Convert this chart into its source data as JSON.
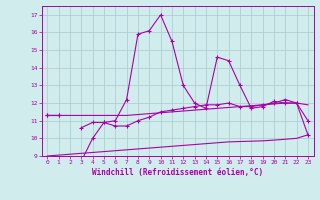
{
  "x": [
    0,
    1,
    2,
    3,
    4,
    5,
    6,
    7,
    8,
    9,
    10,
    11,
    12,
    13,
    14,
    15,
    16,
    17,
    18,
    19,
    20,
    21,
    22,
    23
  ],
  "series1": [
    11.3,
    11.3,
    null,
    8.7,
    10.0,
    10.9,
    11.0,
    12.2,
    15.9,
    16.1,
    17.0,
    15.5,
    13.0,
    12.0,
    11.7,
    14.6,
    14.4,
    13.0,
    11.7,
    11.8,
    12.1,
    12.0,
    12.0,
    11.0
  ],
  "series2": [
    11.3,
    11.3,
    null,
    10.6,
    10.9,
    10.9,
    10.7,
    10.7,
    11.0,
    11.2,
    11.5,
    11.6,
    11.7,
    11.8,
    11.9,
    11.9,
    12.0,
    11.8,
    11.8,
    11.9,
    12.0,
    12.2,
    12.0,
    10.2
  ],
  "series3_low": [
    9.0,
    9.05,
    9.1,
    9.15,
    9.2,
    9.25,
    9.3,
    9.35,
    9.4,
    9.45,
    9.5,
    9.55,
    9.6,
    9.65,
    9.7,
    9.75,
    9.8,
    9.82,
    9.84,
    9.86,
    9.9,
    9.95,
    10.0,
    10.2
  ],
  "series3_high": [
    11.3,
    11.3,
    11.3,
    11.3,
    11.3,
    11.3,
    11.3,
    11.3,
    11.35,
    11.4,
    11.45,
    11.5,
    11.55,
    11.6,
    11.65,
    11.7,
    11.75,
    11.8,
    11.85,
    11.9,
    11.95,
    12.0,
    12.0,
    11.9
  ],
  "line_color": "#aa00aa",
  "bg_color": "#d0ecec",
  "grid_color": "#a8cccc",
  "xlabel": "Windchill (Refroidissement éolien,°C)",
  "ylim": [
    9,
    17.5
  ],
  "xlim": [
    -0.5,
    23.5
  ]
}
